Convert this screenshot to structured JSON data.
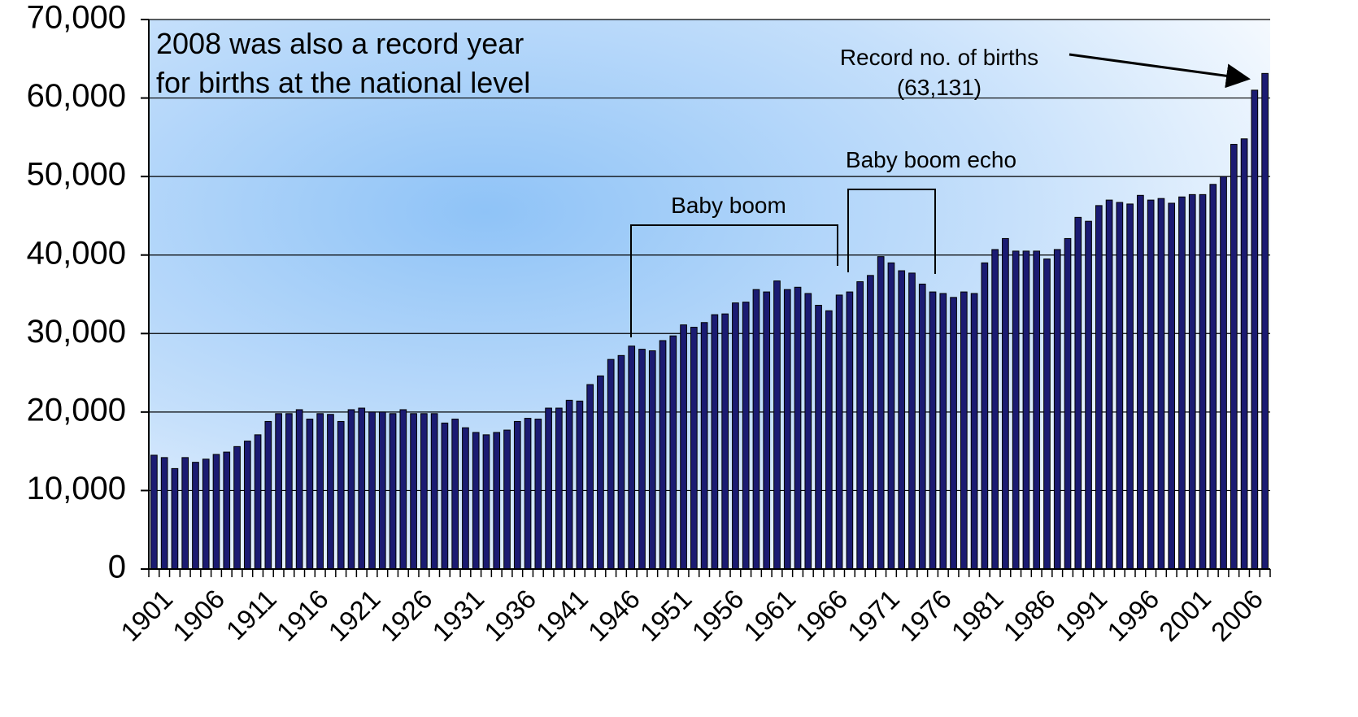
{
  "chart_data": {
    "type": "bar",
    "annotation": [
      "2008 was also a record year",
      "for births at the national level"
    ],
    "record_label": "Record no. of births",
    "record_value_label": "(63,131)",
    "baby_boom_label": "Baby boom",
    "echo_label": "Baby boom echo",
    "categories": [
      "1901",
      null,
      null,
      null,
      null,
      "1906",
      null,
      null,
      null,
      null,
      "1911",
      null,
      null,
      null,
      null,
      "1916",
      null,
      null,
      null,
      null,
      "1921",
      null,
      null,
      null,
      null,
      "1926",
      null,
      null,
      null,
      null,
      "1931",
      null,
      null,
      null,
      null,
      "1936",
      null,
      null,
      null,
      null,
      "1941",
      null,
      null,
      null,
      null,
      "1946",
      null,
      null,
      null,
      null,
      "1951",
      null,
      null,
      null,
      null,
      "1956",
      null,
      null,
      null,
      null,
      "1961",
      null,
      null,
      null,
      null,
      "1966",
      null,
      null,
      null,
      null,
      "1971",
      null,
      null,
      null,
      null,
      "1976",
      null,
      null,
      null,
      null,
      "1981",
      null,
      null,
      null,
      null,
      "1986",
      null,
      null,
      null,
      null,
      "1991",
      null,
      null,
      null,
      null,
      "1996",
      null,
      null,
      null,
      null,
      "2001",
      null,
      null,
      null,
      null,
      "2006",
      null,
      null
    ],
    "values": [
      14500,
      14200,
      12800,
      14200,
      13600,
      14000,
      14600,
      14900,
      15600,
      16300,
      17100,
      18800,
      19800,
      19800,
      20300,
      19100,
      19800,
      19700,
      18800,
      20300,
      20500,
      20000,
      20000,
      19800,
      20300,
      19800,
      19800,
      19800,
      18600,
      19100,
      18000,
      17400,
      17100,
      17400,
      17700,
      18800,
      19200,
      19100,
      20500,
      20500,
      21500,
      21400,
      23500,
      24600,
      26700,
      27200,
      28400,
      28000,
      27800,
      29100,
      29700,
      31100,
      30800,
      31400,
      32400,
      32500,
      33900,
      34000,
      35600,
      35300,
      36700,
      35600,
      35900,
      35100,
      33600,
      32900,
      34900,
      35300,
      36600,
      37400,
      39800,
      39000,
      38000,
      37700,
      36300,
      35300,
      35100,
      34600,
      35300,
      35100,
      39000,
      40700,
      42100,
      40500,
      40500,
      40500,
      39500,
      40700,
      42100,
      44800,
      44300,
      46300,
      47000,
      46700,
      46500,
      47600,
      47000,
      47200,
      46600,
      47400,
      47700,
      47700,
      49000,
      50000,
      54100,
      54800,
      61000,
      63131
    ],
    "color": "#1b1b72",
    "ylim": [
      0,
      70000
    ],
    "yticks": [
      0,
      {
        "value": 10000,
        "label": "10,000"
      },
      {
        "value": 20000,
        "label": "20,000"
      },
      {
        "value": 30000,
        "label": "30,000"
      },
      {
        "value": 40000,
        "label": "40,000"
      },
      {
        "value": 50000,
        "label": "50,000"
      },
      {
        "value": 60000,
        "label": "60,000"
      },
      {
        "value": 70000,
        "label": "70,000"
      }
    ],
    "grid": true
  }
}
